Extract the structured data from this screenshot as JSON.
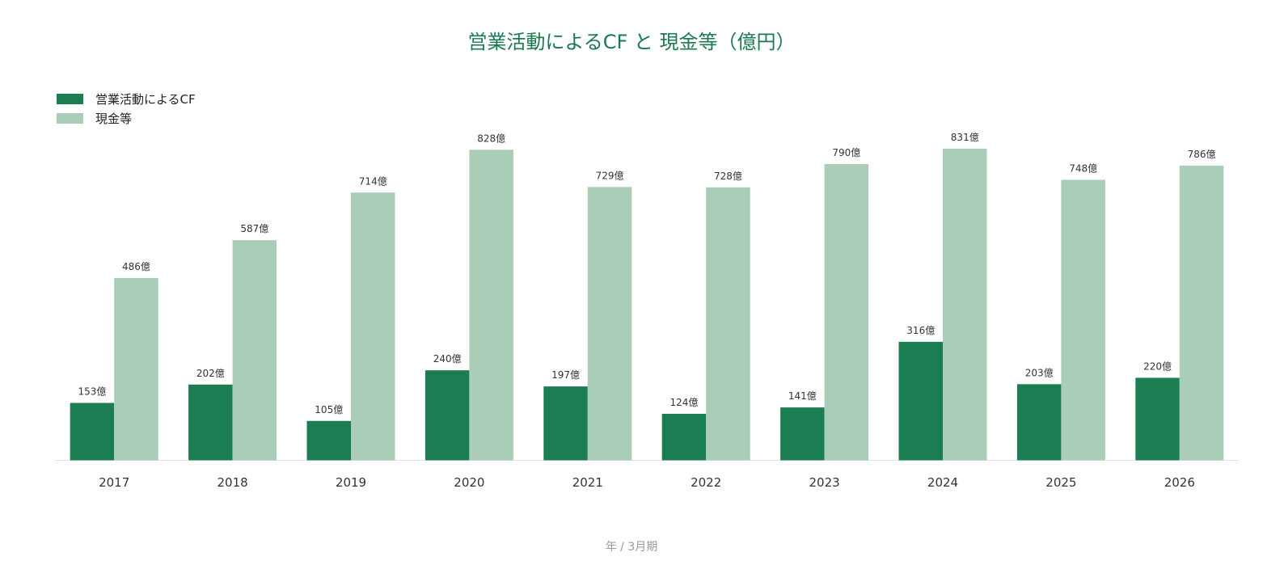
{
  "chart_data": {
    "type": "bar",
    "title": "営業活動によるCF と 現金等（億円）",
    "xlabel": "年 / 3月期",
    "ylabel": "",
    "categories": [
      "2017",
      "2018",
      "2019",
      "2020",
      "2021",
      "2022",
      "2023",
      "2024",
      "2025",
      "2026"
    ],
    "series": [
      {
        "name": "営業活動によるCF",
        "color": "#1b7d52",
        "values": [
          153,
          202,
          105,
          240,
          197,
          124,
          141,
          316,
          203,
          220
        ]
      },
      {
        "name": "現金等",
        "color": "#a9cdb6",
        "values": [
          486,
          587,
          714,
          828,
          729,
          728,
          790,
          831,
          748,
          786
        ]
      }
    ],
    "value_suffix": "億",
    "ylim": [
      0,
      831
    ],
    "grid": false,
    "legend_position": "top-left"
  }
}
